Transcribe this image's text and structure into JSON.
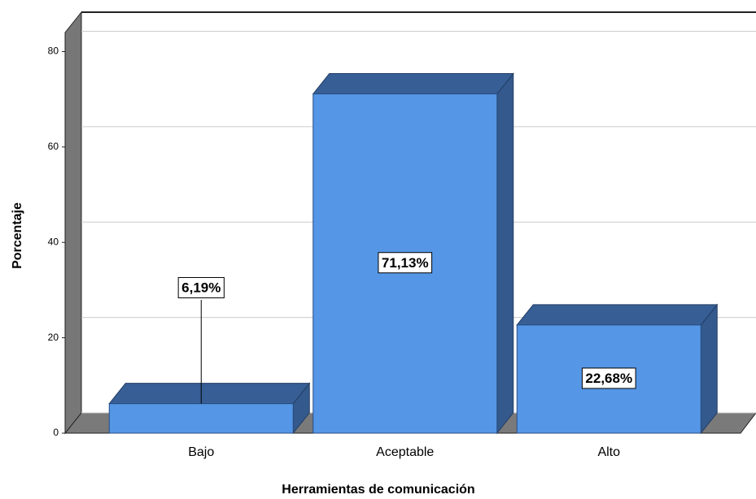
{
  "chart_data": {
    "type": "bar3d",
    "categories": [
      "Bajo",
      "Aceptable",
      "Alto"
    ],
    "values": [
      6.19,
      71.13,
      22.68
    ],
    "value_labels": [
      "6,19%",
      "71,13%",
      "22,68%"
    ],
    "color": "#5596e6",
    "ylim": [
      0,
      84
    ],
    "yticks": [
      0,
      20,
      40,
      60,
      80
    ],
    "grid": true,
    "ylabel": "Porcentaje",
    "xlabel": "Herramientas de comunicación"
  }
}
